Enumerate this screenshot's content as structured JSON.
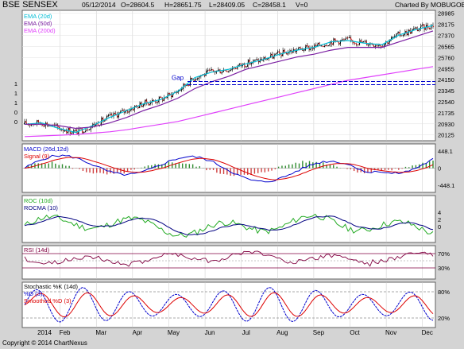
{
  "header": {
    "symbol": "BSE SENSEX",
    "date": "05/12/2014",
    "open": "O=28604.5",
    "high": "H=28651.75",
    "low": "L=28409.05",
    "close": "C=28458.1",
    "volume": "V=0",
    "credit": "Charted By MOBUGOBU"
  },
  "footer": {
    "copyright": "Copyright © 2014 ChartNexus"
  },
  "colors": {
    "price": "#000000",
    "ema20": "#00bcd4",
    "ema50": "#7b1fa2",
    "ema200": "#e040fb",
    "macd": "#0000cc",
    "signal": "#dd0000",
    "hist_pos": "#2e8b2e",
    "hist_neg": "#d04040",
    "roc": "#22aa22",
    "rocma": "#000080",
    "rsi": "#800040",
    "stoch_k": "#0000cc",
    "stoch_d": "#dd0000",
    "gap": "#0000cc"
  },
  "chart_data": [
    {
      "type": "line",
      "panel": "price",
      "legend": [
        "EMA (20d)",
        "EMA (50d)",
        "EMA (200d)"
      ],
      "annotation": "Gap",
      "gap_level": 23900,
      "y_ticks": [
        28985,
        28175,
        27370,
        26565,
        25760,
        24955,
        24150,
        23345,
        22540,
        21735,
        20930,
        20125
      ],
      "left_ticks": [
        "1",
        "1",
        "1",
        "0",
        "0"
      ],
      "ylim": [
        19700,
        29200
      ],
      "x_ticks": [
        "2014",
        "Feb",
        "Mar",
        "Apr",
        "May",
        "Jun",
        "Jul",
        "Aug",
        "Sep",
        "Oct",
        "Nov",
        "Dec"
      ],
      "series": [
        {
          "name": "EMA (20d)",
          "values": [
            20900,
            21000,
            20600,
            20300,
            20800,
            21400,
            21900,
            22400,
            22700,
            23300,
            24300,
            24700,
            24900,
            25300,
            25600,
            26000,
            26300,
            26500,
            26900,
            27000,
            26800,
            26700,
            27400,
            27800,
            28100
          ]
        },
        {
          "name": "EMA (50d)",
          "values": [
            20900,
            20900,
            20800,
            20600,
            20700,
            21000,
            21400,
            21900,
            22300,
            22800,
            23500,
            24000,
            24400,
            24900,
            25200,
            25500,
            25800,
            26000,
            26300,
            26500,
            26500,
            26500,
            26900,
            27300,
            27700
          ]
        },
        {
          "name": "EMA (200d)",
          "values": [
            20000,
            20050,
            20100,
            20150,
            20250,
            20350,
            20500,
            20700,
            20900,
            21100,
            21400,
            21700,
            22000,
            22300,
            22600,
            22900,
            23200,
            23500,
            23800,
            24100,
            24300,
            24500,
            24700,
            24900,
            25100
          ]
        }
      ]
    },
    {
      "type": "line",
      "panel": "macd",
      "legend": [
        "MACD (26d,12d)",
        "Signal (9)"
      ],
      "y_ticks": [
        448.1,
        0,
        -448.1
      ]
    },
    {
      "type": "line",
      "panel": "roc",
      "legend": [
        "ROC (10d)",
        "ROCMA (10)"
      ],
      "y_ticks": [
        4,
        2,
        0
      ]
    },
    {
      "type": "line",
      "panel": "rsi",
      "legend": [
        "RSI (14d)"
      ],
      "y_ticks": [
        "70%",
        "30%"
      ]
    },
    {
      "type": "line",
      "panel": "stochastic",
      "legend": [
        "Stochastic %K (14d)",
        "%D (3)",
        "Smoothed %D (3)"
      ],
      "y_ticks": [
        "80%",
        "20%"
      ]
    }
  ]
}
